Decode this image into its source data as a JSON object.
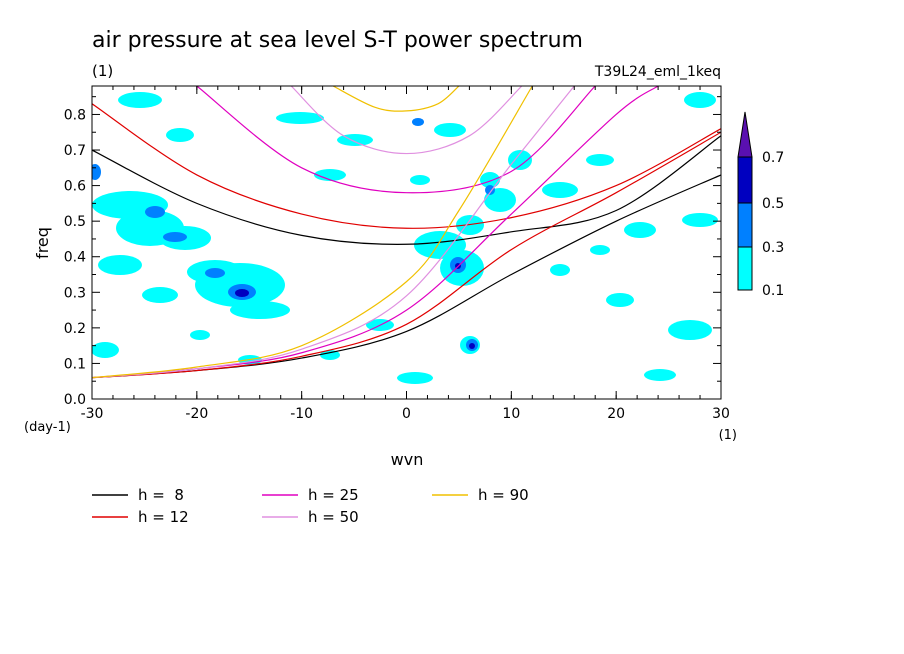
{
  "chart_data": {
    "type": "line",
    "title": "air pressure at sea level S-T power spectrum",
    "subtitle_left": "(1)",
    "subtitle_right": "T39L24_eml_1keq",
    "xlabel": "wvn",
    "x_unit": "(1)",
    "ylabel": "freq",
    "y_unit": "(day-1)",
    "xlim": [
      -30,
      30
    ],
    "ylim": [
      0,
      0.88
    ],
    "x_ticks": [
      -30,
      -20,
      -10,
      0,
      10,
      20,
      30
    ],
    "x_tick_labels": [
      "-30",
      "-20",
      "-10",
      "0",
      "10",
      "20",
      "30"
    ],
    "y_ticks": [
      0,
      0.1,
      0.2,
      0.3,
      0.4,
      0.5,
      0.6,
      0.7,
      0.8
    ],
    "y_tick_labels": [
      "0.0",
      "0.1",
      "0.2",
      "0.3",
      "0.4",
      "0.5",
      "0.6",
      "0.7",
      "0.8"
    ],
    "colorbar": {
      "levels": [
        "0.1",
        "0.3",
        "0.5",
        "0.7"
      ],
      "colors": [
        "#00ffff",
        "#0080ff",
        "#0000c0",
        "#5a10b0"
      ]
    },
    "series": [
      {
        "name": "h =  8",
        "color": "#000000",
        "igw": {
          "x": [
            -30,
            -20,
            -10,
            0,
            10,
            20,
            30
          ],
          "y": [
            0.7,
            0.55,
            0.46,
            0.435,
            0.47,
            0.53,
            0.74
          ]
        },
        "kelvin": {
          "x": [
            -30,
            -20,
            -10,
            0,
            10,
            20,
            30
          ],
          "y": [
            0.06,
            0.08,
            0.115,
            0.19,
            0.35,
            0.5,
            0.63
          ]
        }
      },
      {
        "name": "h = 12",
        "color": "#e00000",
        "igw": {
          "x": [
            -30,
            -20,
            -10,
            0,
            10,
            20,
            30
          ],
          "y": [
            0.83,
            0.63,
            0.52,
            0.48,
            0.51,
            0.6,
            0.76
          ]
        },
        "kelvin": {
          "x": [
            -30,
            -20,
            -10,
            0,
            10,
            20,
            30
          ],
          "y": [
            0.06,
            0.08,
            0.12,
            0.21,
            0.42,
            0.58,
            0.75
          ]
        }
      },
      {
        "name": "h = 25",
        "color": "#e000c0",
        "igw": {
          "x": [
            -20,
            -10,
            0,
            10,
            18
          ],
          "y": [
            0.88,
            0.65,
            0.58,
            0.64,
            0.88
          ]
        },
        "kelvin": {
          "x": [
            -30,
            -20,
            -10,
            0,
            10,
            20,
            24
          ],
          "y": [
            0.06,
            0.085,
            0.13,
            0.25,
            0.52,
            0.8,
            0.88
          ]
        }
      },
      {
        "name": "h = 50",
        "color": "#e090e0",
        "igw": {
          "x": [
            -11,
            -6,
            0,
            6,
            11
          ],
          "y": [
            0.88,
            0.74,
            0.69,
            0.74,
            0.88
          ]
        },
        "kelvin": {
          "x": [
            -30,
            -20,
            -10,
            0,
            10,
            16
          ],
          "y": [
            0.06,
            0.085,
            0.14,
            0.29,
            0.66,
            0.88
          ]
        }
      },
      {
        "name": "h = 90",
        "color": "#f0c000",
        "igw": {
          "x": [
            -7,
            -3,
            0,
            3,
            5
          ],
          "y": [
            0.88,
            0.82,
            0.81,
            0.83,
            0.88
          ]
        },
        "kelvin": {
          "x": [
            -30,
            -20,
            -10,
            0,
            5,
            12
          ],
          "y": [
            0.06,
            0.09,
            0.15,
            0.33,
            0.53,
            0.88
          ]
        }
      }
    ]
  }
}
